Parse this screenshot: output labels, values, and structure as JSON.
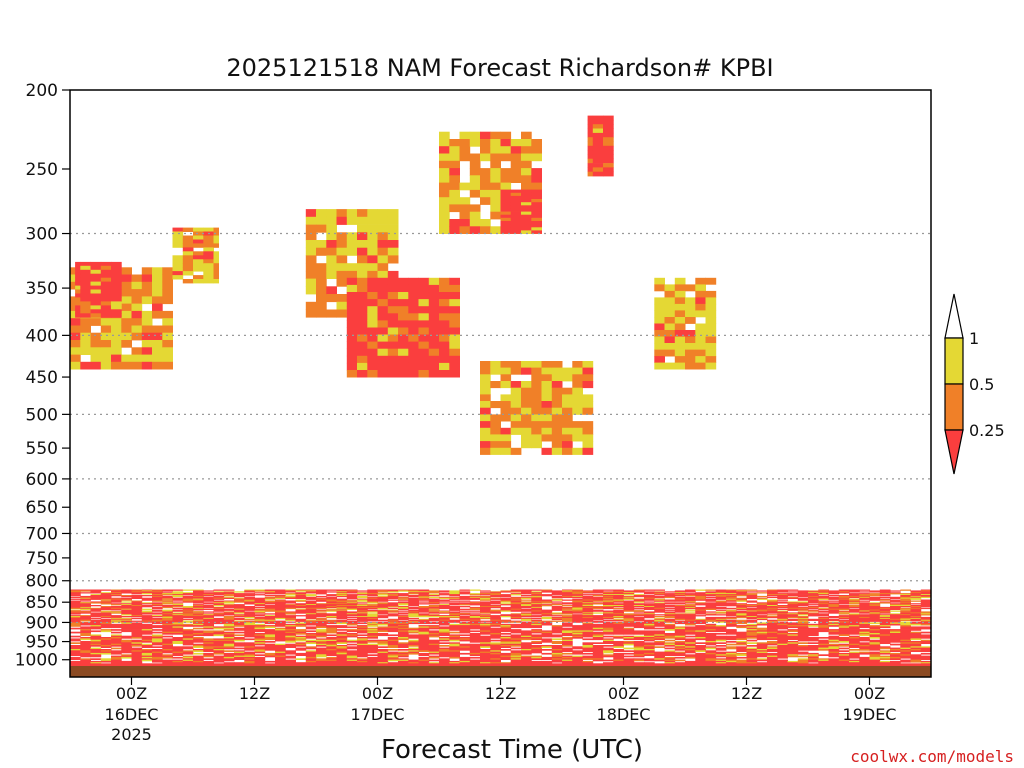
{
  "chart_data": {
    "type": "heatmap",
    "title": "2025121518 NAM Forecast Richardson# KPBI",
    "xlabel": "Forecast Time (UTC)",
    "ylabel": "",
    "credit": "coolwx.com/models",
    "y_axis": {
      "scale": "log-pressure",
      "range_hPa": [
        1050,
        200
      ],
      "ticks": [
        200,
        250,
        300,
        350,
        400,
        450,
        500,
        550,
        600,
        650,
        700,
        750,
        800,
        850,
        900,
        950,
        1000
      ],
      "gridlines_at": [
        300,
        400,
        500,
        600,
        700,
        800,
        900
      ],
      "grid": "dotted"
    },
    "x_axis": {
      "unit": "forecast hour",
      "range": [
        0,
        84
      ],
      "ticks": [
        {
          "hour": 6,
          "label": "00Z",
          "sub": "16DEC",
          "sub2": "2025"
        },
        {
          "hour": 18,
          "label": "12Z",
          "sub": "",
          "sub2": ""
        },
        {
          "hour": 30,
          "label": "00Z",
          "sub": "17DEC",
          "sub2": ""
        },
        {
          "hour": 42,
          "label": "12Z",
          "sub": "",
          "sub2": ""
        },
        {
          "hour": 54,
          "label": "00Z",
          "sub": "18DEC",
          "sub2": ""
        },
        {
          "hour": 66,
          "label": "12Z",
          "sub": "",
          "sub2": ""
        },
        {
          "hour": 78,
          "label": "00Z",
          "sub": "19DEC",
          "sub2": ""
        }
      ]
    },
    "legend": {
      "placement": "right",
      "levels": [
        {
          "label": "1",
          "color": "#ffffff"
        },
        {
          "label": "0.5",
          "color": "#e4d834"
        },
        {
          "label": "0.25",
          "color": "#f08028"
        }
      ],
      "lowest_color": "#fa3e3e",
      "bins": [
        {
          "range": "< 0.25",
          "color": "#fa3e3e"
        },
        {
          "range": "0.25 - 0.5",
          "color": "#f08028"
        },
        {
          "range": "0.5 - 1",
          "color": "#e4d834"
        },
        {
          "range": "> 1",
          "color": "#ffffff"
        }
      ]
    },
    "ground_color": "#8b4a22",
    "regions": [
      {
        "bin": "< 0.5",
        "t": [
          0,
          10
        ],
        "p": [
          330,
          440
        ]
      },
      {
        "bin": "< 0.25",
        "t": [
          0.5,
          5
        ],
        "p": [
          325,
          380
        ]
      },
      {
        "bin": "< 0.5",
        "t": [
          10,
          14.5
        ],
        "p": [
          295,
          345
        ]
      },
      {
        "bin": "< 0.5",
        "t": [
          23,
          32
        ],
        "p": [
          280,
          380
        ]
      },
      {
        "bin": "< 0.25",
        "t": [
          27,
          38
        ],
        "p": [
          340,
          450
        ]
      },
      {
        "bin": "< 0.5",
        "t": [
          36,
          46
        ],
        "p": [
          225,
          300
        ]
      },
      {
        "bin": "< 0.25",
        "t": [
          42,
          46
        ],
        "p": [
          265,
          300
        ]
      },
      {
        "bin": "< 0.25",
        "t": [
          50.5,
          53
        ],
        "p": [
          215,
          255
        ]
      },
      {
        "bin": "< 0.5",
        "t": [
          57,
          63
        ],
        "p": [
          340,
          440
        ]
      },
      {
        "bin": "< 0.5",
        "t": [
          40,
          51
        ],
        "p": [
          430,
          560
        ]
      },
      {
        "bin": "< 0.25",
        "t": [
          0,
          84
        ],
        "p": [
          820,
          900
        ]
      },
      {
        "bin": "< 0.25",
        "t": [
          0,
          84
        ],
        "p": [
          900,
          1030
        ]
      }
    ]
  }
}
